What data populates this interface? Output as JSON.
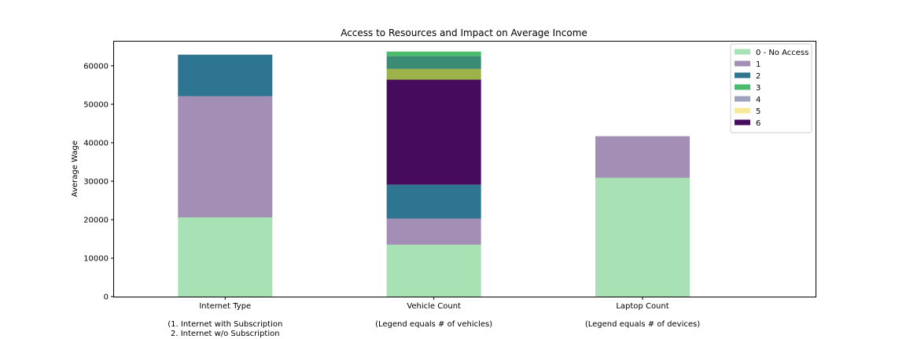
{
  "chart_data": {
    "type": "bar",
    "stacked": true,
    "title": "Access to Resources and Impact on Average Income",
    "xlabel": "",
    "ylabel": "Average Wage",
    "ylim": [
      0,
      66500
    ],
    "yticks": [
      0,
      10000,
      20000,
      30000,
      40000,
      50000,
      60000
    ],
    "ytick_labels": [
      "0",
      "10000",
      "20000",
      "30000",
      "40000",
      "50000",
      "60000"
    ],
    "grid": false,
    "legend_position": "top-right",
    "categories": [
      {
        "label": "Internet Type",
        "note_lines": [
          "(1. Internet with Subscription",
          "2. Internet w/o Subscription"
        ]
      },
      {
        "label": "Vehicle Count",
        "note_lines": [
          "(Legend equals # of vehicles)"
        ]
      },
      {
        "label": "Laptop Count",
        "note_lines": [
          "(Legend equals # of devices)"
        ]
      }
    ],
    "series": [
      {
        "name": "0 - No Access",
        "color": "#a8e1b4",
        "values": [
          20600,
          13500,
          30900
        ]
      },
      {
        "name": "1",
        "color": "#a38eb5",
        "values": [
          31500,
          6800,
          10800
        ]
      },
      {
        "name": "2",
        "color": "#2d7590",
        "values": [
          10800,
          8800,
          0
        ]
      },
      {
        "name": "3",
        "color": "#4bbb6d",
        "values": [
          0,
          0,
          0
        ]
      },
      {
        "name": "4",
        "color": "#9fa3c0",
        "values": [
          0,
          0,
          0
        ]
      },
      {
        "name": "5",
        "color": "#f6ea97",
        "values": [
          0,
          0,
          0
        ]
      },
      {
        "name": "6",
        "color": "#470b5e",
        "values": [
          0,
          27300,
          0
        ]
      },
      {
        "name": "",
        "color": "#9db34a",
        "values": [
          0,
          2800,
          0
        ]
      },
      {
        "name": "",
        "color": "#3c8b74",
        "values": [
          0,
          3300,
          0
        ]
      },
      {
        "name": "",
        "color": "#4bbb6d",
        "values": [
          0,
          1200,
          0
        ]
      }
    ]
  }
}
